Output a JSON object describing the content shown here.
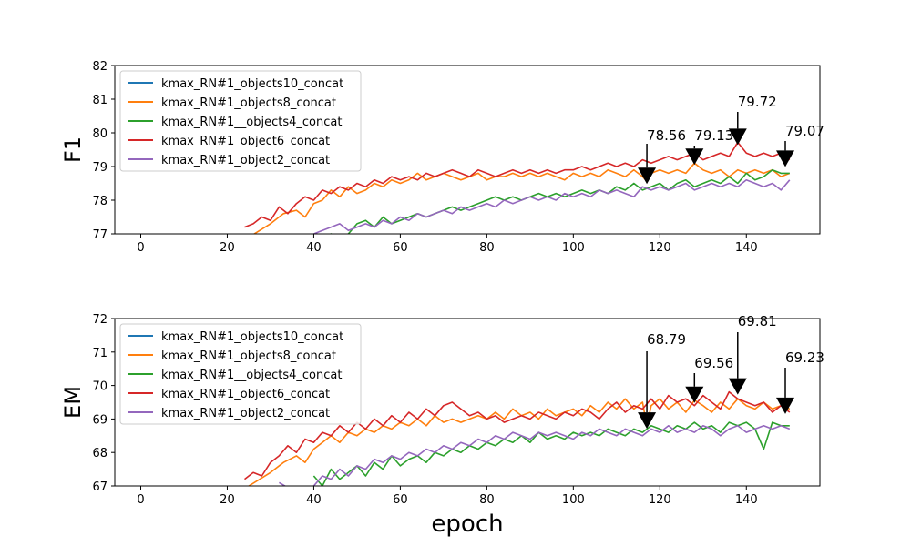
{
  "chart_data": [
    {
      "type": "line",
      "ylabel": "F1",
      "xlabel": "",
      "xlim": [
        -6,
        157
      ],
      "ylim": [
        77,
        82
      ],
      "xticks": [
        0,
        20,
        40,
        60,
        80,
        100,
        120,
        140
      ],
      "yticks": [
        77,
        78,
        79,
        80,
        81,
        82
      ],
      "legend_position": "upper-left",
      "series": [
        {
          "name": "kmax_RN#1_objects10_concat",
          "color": "#1f77b4",
          "x": [],
          "y": []
        },
        {
          "name": "kmax_RN#1_objects8_concat",
          "color": "#ff7f0e",
          "x": [
            20,
            25,
            30,
            33,
            36,
            38,
            40,
            42,
            44,
            46,
            48,
            50,
            52,
            54,
            56,
            58,
            60,
            62,
            64,
            66,
            68,
            70,
            72,
            74,
            76,
            78,
            80,
            82,
            84,
            86,
            88,
            90,
            92,
            94,
            96,
            98,
            100,
            102,
            104,
            106,
            108,
            110,
            112,
            114,
            116,
            117,
            118,
            120,
            122,
            124,
            126,
            128,
            130,
            132,
            134,
            136,
            138,
            140,
            142,
            144,
            146,
            148,
            150
          ],
          "y": [
            76.5,
            76.9,
            77.3,
            77.6,
            77.7,
            77.5,
            77.9,
            78.0,
            78.3,
            78.1,
            78.4,
            78.2,
            78.3,
            78.5,
            78.4,
            78.6,
            78.5,
            78.6,
            78.8,
            78.6,
            78.7,
            78.8,
            78.7,
            78.6,
            78.7,
            78.8,
            78.6,
            78.7,
            78.7,
            78.8,
            78.7,
            78.8,
            78.7,
            78.8,
            78.7,
            78.6,
            78.8,
            78.7,
            78.8,
            78.7,
            78.9,
            78.8,
            78.7,
            78.9,
            78.7,
            78.56,
            78.8,
            78.9,
            78.8,
            78.9,
            78.8,
            79.1,
            78.9,
            78.8,
            78.9,
            78.7,
            78.9,
            78.8,
            78.9,
            78.8,
            78.9,
            78.7,
            78.8
          ]
        },
        {
          "name": "kmax_RN#1__objects4_concat",
          "color": "#2ca02c",
          "x": [
            40,
            44,
            46,
            48,
            50,
            52,
            54,
            56,
            58,
            60,
            62,
            64,
            66,
            68,
            70,
            72,
            74,
            76,
            78,
            80,
            82,
            84,
            86,
            88,
            90,
            92,
            94,
            96,
            98,
            100,
            102,
            104,
            106,
            108,
            110,
            112,
            114,
            116,
            118,
            120,
            122,
            124,
            126,
            128,
            130,
            132,
            134,
            136,
            138,
            140,
            142,
            144,
            146,
            148,
            150
          ],
          "y": [
            76.8,
            77.0,
            76.9,
            77.0,
            77.3,
            77.4,
            77.2,
            77.5,
            77.3,
            77.4,
            77.5,
            77.6,
            77.5,
            77.6,
            77.7,
            77.8,
            77.7,
            77.8,
            77.9,
            78.0,
            78.1,
            78.0,
            78.1,
            78.0,
            78.1,
            78.2,
            78.1,
            78.2,
            78.1,
            78.2,
            78.3,
            78.2,
            78.3,
            78.2,
            78.4,
            78.3,
            78.5,
            78.3,
            78.4,
            78.5,
            78.3,
            78.5,
            78.6,
            78.4,
            78.5,
            78.6,
            78.5,
            78.7,
            78.5,
            78.8,
            78.6,
            78.7,
            78.9,
            78.8,
            78.8
          ]
        },
        {
          "name": "kmax_RN#1_object6_concat",
          "color": "#d62728",
          "x": [
            24,
            26,
            28,
            30,
            32,
            34,
            36,
            38,
            40,
            42,
            44,
            46,
            48,
            50,
            52,
            54,
            56,
            58,
            60,
            62,
            64,
            66,
            68,
            70,
            72,
            74,
            76,
            78,
            80,
            82,
            84,
            86,
            88,
            90,
            92,
            94,
            96,
            98,
            100,
            102,
            104,
            106,
            108,
            110,
            112,
            114,
            116,
            118,
            120,
            122,
            124,
            126,
            128,
            130,
            132,
            134,
            136,
            138,
            140,
            142,
            144,
            146,
            148,
            150
          ],
          "y": [
            77.2,
            77.3,
            77.5,
            77.4,
            77.8,
            77.6,
            77.9,
            78.1,
            78.0,
            78.3,
            78.2,
            78.4,
            78.3,
            78.5,
            78.4,
            78.6,
            78.5,
            78.7,
            78.6,
            78.7,
            78.6,
            78.8,
            78.7,
            78.8,
            78.9,
            78.8,
            78.7,
            78.9,
            78.8,
            78.7,
            78.8,
            78.9,
            78.8,
            78.9,
            78.8,
            78.9,
            78.8,
            78.9,
            78.9,
            79.0,
            78.9,
            79.0,
            79.1,
            79.0,
            79.1,
            79.0,
            79.2,
            79.1,
            79.2,
            79.3,
            79.2,
            79.3,
            79.4,
            79.2,
            79.3,
            79.4,
            79.3,
            79.72,
            79.4,
            79.3,
            79.4,
            79.3,
            79.4,
            79.2
          ]
        },
        {
          "name": "kmax_RN#1_object2_concat",
          "color": "#9467bd",
          "x": [
            40,
            42,
            44,
            46,
            48,
            50,
            52,
            54,
            56,
            58,
            60,
            62,
            64,
            66,
            68,
            70,
            72,
            74,
            76,
            78,
            80,
            82,
            84,
            86,
            88,
            90,
            92,
            94,
            96,
            98,
            100,
            102,
            104,
            106,
            108,
            110,
            112,
            114,
            116,
            118,
            120,
            122,
            124,
            126,
            128,
            130,
            132,
            134,
            136,
            138,
            140,
            142,
            144,
            146,
            148,
            150
          ],
          "y": [
            77.0,
            77.1,
            77.2,
            77.3,
            77.1,
            77.2,
            77.3,
            77.2,
            77.4,
            77.3,
            77.5,
            77.4,
            77.6,
            77.5,
            77.6,
            77.7,
            77.6,
            77.8,
            77.7,
            77.8,
            77.9,
            77.8,
            78.0,
            77.9,
            78.0,
            78.1,
            78.0,
            78.1,
            78.0,
            78.2,
            78.1,
            78.2,
            78.1,
            78.3,
            78.2,
            78.3,
            78.2,
            78.1,
            78.4,
            78.3,
            78.4,
            78.3,
            78.4,
            78.5,
            78.3,
            78.4,
            78.5,
            78.4,
            78.5,
            78.4,
            78.6,
            78.5,
            78.4,
            78.5,
            78.3,
            78.6
          ]
        }
      ],
      "annotations": [
        {
          "text": "78.56",
          "x": 117,
          "y": 78.56
        },
        {
          "text": "79.13",
          "x": 128,
          "y": 79.13
        },
        {
          "text": "79.72",
          "x": 138,
          "y": 79.72
        },
        {
          "text": "79.07",
          "x": 149,
          "y": 79.07
        }
      ]
    },
    {
      "type": "line",
      "ylabel": "EM",
      "xlabel": "epoch",
      "xlim": [
        -6,
        157
      ],
      "ylim": [
        67,
        72
      ],
      "xticks": [
        0,
        20,
        40,
        60,
        80,
        100,
        120,
        140
      ],
      "yticks": [
        67,
        68,
        69,
        70,
        71,
        72
      ],
      "legend_position": "upper-left",
      "series": [
        {
          "name": "kmax_RN#1_objects10_concat",
          "color": "#1f77b4",
          "x": [],
          "y": []
        },
        {
          "name": "kmax_RN#1_objects8_concat",
          "color": "#ff7f0e",
          "x": [
            20,
            25,
            30,
            33,
            36,
            38,
            40,
            42,
            44,
            46,
            48,
            50,
            52,
            54,
            56,
            58,
            60,
            62,
            64,
            66,
            68,
            70,
            72,
            74,
            76,
            78,
            80,
            82,
            84,
            86,
            88,
            90,
            92,
            94,
            96,
            98,
            100,
            102,
            104,
            106,
            108,
            110,
            112,
            114,
            116,
            117,
            118,
            120,
            122,
            124,
            126,
            128,
            130,
            132,
            134,
            136,
            138,
            140,
            142,
            144,
            146,
            148,
            150
          ],
          "y": [
            66.5,
            67.0,
            67.4,
            67.7,
            67.9,
            67.7,
            68.1,
            68.3,
            68.5,
            68.3,
            68.6,
            68.5,
            68.7,
            68.6,
            68.8,
            68.7,
            68.9,
            68.8,
            69.0,
            68.8,
            69.1,
            68.9,
            69.0,
            68.9,
            69.0,
            69.1,
            69.0,
            69.2,
            69.0,
            69.3,
            69.1,
            69.2,
            69.0,
            69.3,
            69.1,
            69.2,
            69.3,
            69.1,
            69.4,
            69.2,
            69.5,
            69.3,
            69.6,
            69.3,
            69.5,
            68.79,
            69.4,
            69.6,
            69.3,
            69.5,
            69.2,
            69.56,
            69.4,
            69.2,
            69.5,
            69.3,
            69.6,
            69.4,
            69.3,
            69.5,
            69.3,
            69.4,
            69.3
          ]
        },
        {
          "name": "kmax_RN#1__objects4_concat",
          "color": "#2ca02c",
          "x": [
            40,
            42,
            44,
            46,
            48,
            50,
            52,
            54,
            56,
            58,
            60,
            62,
            64,
            66,
            68,
            70,
            72,
            74,
            76,
            78,
            80,
            82,
            84,
            86,
            88,
            90,
            92,
            94,
            96,
            98,
            100,
            102,
            104,
            106,
            108,
            110,
            112,
            114,
            116,
            118,
            120,
            122,
            124,
            126,
            128,
            130,
            132,
            134,
            136,
            138,
            140,
            142,
            144,
            146,
            148,
            150
          ],
          "y": [
            67.3,
            67.0,
            67.5,
            67.2,
            67.4,
            67.6,
            67.3,
            67.7,
            67.5,
            67.9,
            67.6,
            67.8,
            67.9,
            67.7,
            68.0,
            67.9,
            68.1,
            68.0,
            68.2,
            68.1,
            68.3,
            68.2,
            68.4,
            68.3,
            68.5,
            68.3,
            68.6,
            68.4,
            68.5,
            68.4,
            68.6,
            68.5,
            68.6,
            68.5,
            68.7,
            68.6,
            68.5,
            68.7,
            68.6,
            68.8,
            68.7,
            68.6,
            68.8,
            68.7,
            68.9,
            68.7,
            68.8,
            68.6,
            68.9,
            68.8,
            68.9,
            68.7,
            68.1,
            68.9,
            68.8,
            68.8
          ]
        },
        {
          "name": "kmax_RN#1_object6_concat",
          "color": "#d62728",
          "x": [
            24,
            26,
            28,
            30,
            32,
            34,
            36,
            38,
            40,
            42,
            44,
            46,
            48,
            50,
            52,
            54,
            56,
            58,
            60,
            62,
            64,
            66,
            68,
            70,
            72,
            74,
            76,
            78,
            80,
            82,
            84,
            86,
            88,
            90,
            92,
            94,
            96,
            98,
            100,
            102,
            104,
            106,
            108,
            110,
            112,
            114,
            116,
            118,
            120,
            122,
            124,
            126,
            128,
            130,
            132,
            134,
            136,
            138,
            140,
            142,
            144,
            146,
            148,
            150
          ],
          "y": [
            67.2,
            67.4,
            67.3,
            67.7,
            67.9,
            68.2,
            68.0,
            68.4,
            68.3,
            68.6,
            68.5,
            68.8,
            68.6,
            68.9,
            68.7,
            69.0,
            68.8,
            69.1,
            68.9,
            69.2,
            69.0,
            69.3,
            69.1,
            69.4,
            69.5,
            69.3,
            69.1,
            69.2,
            69.0,
            69.1,
            68.9,
            69.0,
            69.1,
            69.0,
            69.2,
            69.1,
            69.0,
            69.2,
            69.1,
            69.3,
            69.2,
            69.0,
            69.3,
            69.5,
            69.2,
            69.4,
            69.3,
            69.6,
            69.3,
            69.7,
            69.5,
            69.6,
            69.4,
            69.7,
            69.5,
            69.3,
            69.81,
            69.6,
            69.5,
            69.4,
            69.5,
            69.2,
            69.4,
            69.2
          ]
        },
        {
          "name": "kmax_RN#1_object2_concat",
          "color": "#9467bd",
          "x": [
            32,
            36,
            40,
            42,
            44,
            46,
            48,
            50,
            52,
            54,
            56,
            58,
            60,
            62,
            64,
            66,
            68,
            70,
            72,
            74,
            76,
            78,
            80,
            82,
            84,
            86,
            88,
            90,
            92,
            94,
            96,
            98,
            100,
            102,
            104,
            106,
            108,
            110,
            112,
            114,
            116,
            118,
            120,
            122,
            124,
            126,
            128,
            130,
            132,
            134,
            136,
            138,
            140,
            142,
            144,
            146,
            148,
            150
          ],
          "y": [
            67.1,
            66.8,
            67.0,
            67.3,
            67.2,
            67.5,
            67.3,
            67.6,
            67.5,
            67.8,
            67.7,
            67.9,
            67.8,
            68.0,
            67.9,
            68.1,
            68.0,
            68.2,
            68.1,
            68.3,
            68.2,
            68.4,
            68.3,
            68.5,
            68.4,
            68.6,
            68.5,
            68.4,
            68.6,
            68.5,
            68.6,
            68.5,
            68.4,
            68.6,
            68.5,
            68.7,
            68.6,
            68.5,
            68.7,
            68.6,
            68.5,
            68.7,
            68.6,
            68.8,
            68.6,
            68.7,
            68.6,
            68.8,
            68.7,
            68.5,
            68.7,
            68.8,
            68.6,
            68.7,
            68.8,
            68.7,
            68.8,
            68.7
          ]
        }
      ],
      "annotations": [
        {
          "text": "68.79",
          "x": 117,
          "y": 68.79
        },
        {
          "text": "69.56",
          "x": 128,
          "y": 69.56
        },
        {
          "text": "69.81",
          "x": 138,
          "y": 69.81
        },
        {
          "text": "69.23",
          "x": 149,
          "y": 69.23
        }
      ]
    }
  ]
}
